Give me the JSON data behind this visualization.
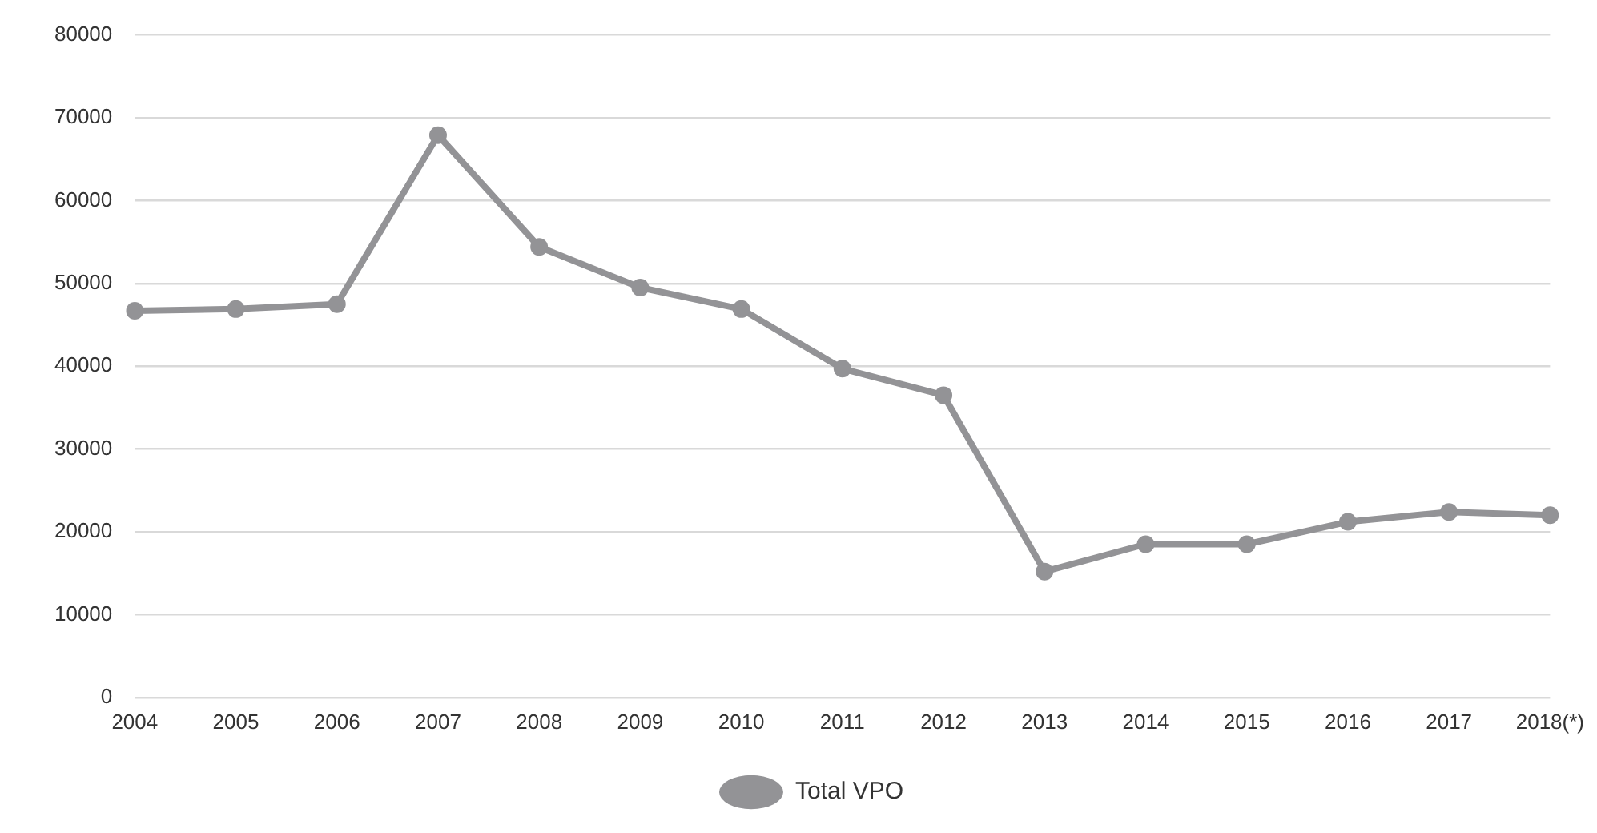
{
  "chart_data": {
    "type": "line",
    "categories": [
      "2004",
      "2005",
      "2006",
      "2007",
      "2008",
      "2009",
      "2010",
      "2011",
      "2012",
      "2013",
      "2014",
      "2015",
      "2016",
      "2017",
      "2018(*)"
    ],
    "series": [
      {
        "name": "Total VPO",
        "color": "#939396",
        "values": [
          46700,
          46900,
          47500,
          67900,
          54400,
          49500,
          46900,
          39700,
          36500,
          15200,
          18500,
          18500,
          21200,
          22400,
          22000
        ]
      }
    ],
    "ylim": [
      0,
      80000
    ],
    "yticks": [
      0,
      10000,
      20000,
      30000,
      40000,
      50000,
      60000,
      70000,
      80000
    ],
    "grid": "y",
    "legend": "bottom",
    "marker": "circle",
    "line_style": "solid"
  }
}
